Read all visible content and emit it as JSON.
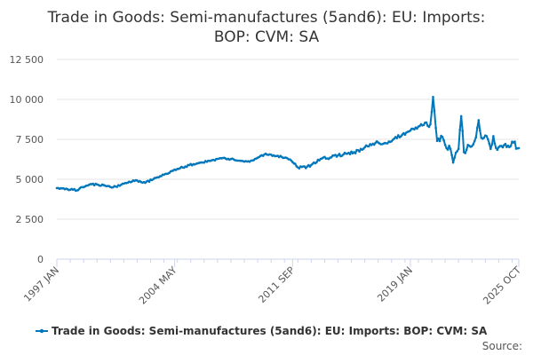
{
  "chart_data": {
    "type": "line",
    "title_line1": "Trade in Goods: Semi-manufactures (5and6): EU: Imports:",
    "title_line2": "BOP: CVM: SA",
    "ylim": [
      0,
      12500
    ],
    "y_ticks": [
      {
        "value": 0,
        "label": "0"
      },
      {
        "value": 2500,
        "label": "2 500"
      },
      {
        "value": 5000,
        "label": "5 000"
      },
      {
        "value": 7500,
        "label": "7 500"
      },
      {
        "value": 10000,
        "label": "10 000"
      },
      {
        "value": 12500,
        "label": "12 500"
      }
    ],
    "x_start": "1997 JAN",
    "x_end": "2025 OCT",
    "x_ticks": [
      "1997 JAN",
      "2004 MAY",
      "2011 SEP",
      "2019 JAN",
      "2025 OCT"
    ],
    "grid": "horizontal",
    "series": [
      {
        "name": "Trade in Goods: Semi-manufactures (5and6): EU: Imports: BOP: CVM: SA",
        "color": "#0077bb",
        "anchors": [
          [
            "1997 JAN",
            4450
          ],
          [
            "1997 JUL",
            4380
          ],
          [
            "1998 JAN",
            4350
          ],
          [
            "1998 APR",
            4300
          ],
          [
            "1998 JUL",
            4500
          ],
          [
            "1999 JAN",
            4650
          ],
          [
            "1999 JUL",
            4680
          ],
          [
            "2000 JAN",
            4600
          ],
          [
            "2000 JUL",
            4500
          ],
          [
            "2001 JAN",
            4650
          ],
          [
            "2001 JUL",
            4850
          ],
          [
            "2002 JAN",
            4920
          ],
          [
            "2002 JUL",
            4780
          ],
          [
            "2003 JAN",
            5000
          ],
          [
            "2003 JUL",
            5200
          ],
          [
            "2004 JAN",
            5400
          ],
          [
            "2004 JUL",
            5650
          ],
          [
            "2005 JAN",
            5800
          ],
          [
            "2005 JUL",
            5950
          ],
          [
            "2006 JAN",
            6050
          ],
          [
            "2006 JUL",
            6150
          ],
          [
            "2007 JAN",
            6280
          ],
          [
            "2007 JUL",
            6300
          ],
          [
            "2008 JAN",
            6250
          ],
          [
            "2008 JUL",
            6150
          ],
          [
            "2009 JAN",
            6100
          ],
          [
            "2009 JUL",
            6350
          ],
          [
            "2010 JAN",
            6600
          ],
          [
            "2010 JUL",
            6500
          ],
          [
            "2011 JAN",
            6400
          ],
          [
            "2011 JUL",
            6250
          ],
          [
            "2012 JAN",
            5750
          ],
          [
            "2012 JUL",
            5700
          ],
          [
            "2013 JAN",
            6050
          ],
          [
            "2013 JUL",
            6300
          ],
          [
            "2014 JAN",
            6350
          ],
          [
            "2014 JUL",
            6500
          ],
          [
            "2015 JAN",
            6600
          ],
          [
            "2015 JUL",
            6700
          ],
          [
            "2016 JAN",
            6850
          ],
          [
            "2016 JUL",
            7200
          ],
          [
            "2017 JAN",
            7300
          ],
          [
            "2017 JUL",
            7250
          ],
          [
            "2018 JAN",
            7550
          ],
          [
            "2018 JUL",
            7800
          ],
          [
            "2019 JAN",
            8050
          ],
          [
            "2019 JUL",
            8300
          ],
          [
            "2020 JAN",
            8550
          ],
          [
            "2020 APR",
            8450
          ],
          [
            "2020 JUN",
            10150
          ],
          [
            "2020 SEP",
            7400
          ],
          [
            "2021 JAN",
            7650
          ],
          [
            "2021 APR",
            6950
          ],
          [
            "2021 JUL",
            6900
          ],
          [
            "2021 SEP",
            6050
          ],
          [
            "2022 JAN",
            6900
          ],
          [
            "2022 MAR",
            8950
          ],
          [
            "2022 MAY",
            6700
          ],
          [
            "2022 SEP",
            7100
          ],
          [
            "2023 JAN",
            7400
          ],
          [
            "2023 APR",
            8700
          ],
          [
            "2023 JUN",
            7600
          ],
          [
            "2023 OCT",
            7700
          ],
          [
            "2024 JAN",
            6900
          ],
          [
            "2024 MAR",
            7700
          ],
          [
            "2024 JUN",
            6850
          ],
          [
            "2024 OCT",
            7000
          ],
          [
            "2025 FEB",
            7100
          ],
          [
            "2025 JUN",
            7300
          ],
          [
            "2025 OCT",
            6950
          ]
        ]
      }
    ]
  },
  "footer": {
    "source_label": "Source:"
  }
}
